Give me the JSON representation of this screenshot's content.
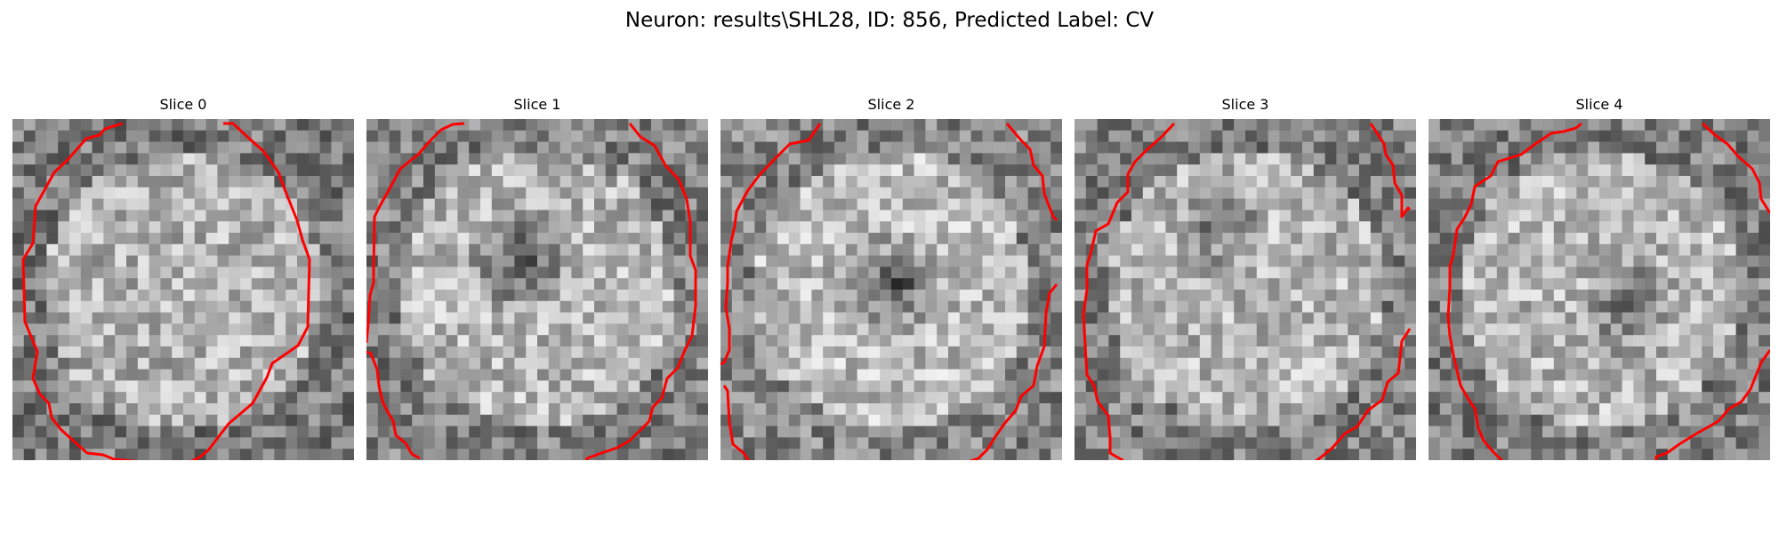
{
  "figure": {
    "title": "Neuron: results\\SHL28, ID: 856, Predicted Label: CV",
    "contour_color": "#ff0000",
    "colormap": "gray"
  },
  "panels": [
    {
      "title": "Slice 0",
      "icon": "grayscale-slice-with-red-contour"
    },
    {
      "title": "Slice 1",
      "icon": "grayscale-slice-with-red-contour"
    },
    {
      "title": "Slice 2",
      "icon": "grayscale-slice-with-red-contour"
    },
    {
      "title": "Slice 3",
      "icon": "grayscale-slice-with-red-contour"
    },
    {
      "title": "Slice 4",
      "icon": "grayscale-slice-with-red-contour"
    }
  ]
}
